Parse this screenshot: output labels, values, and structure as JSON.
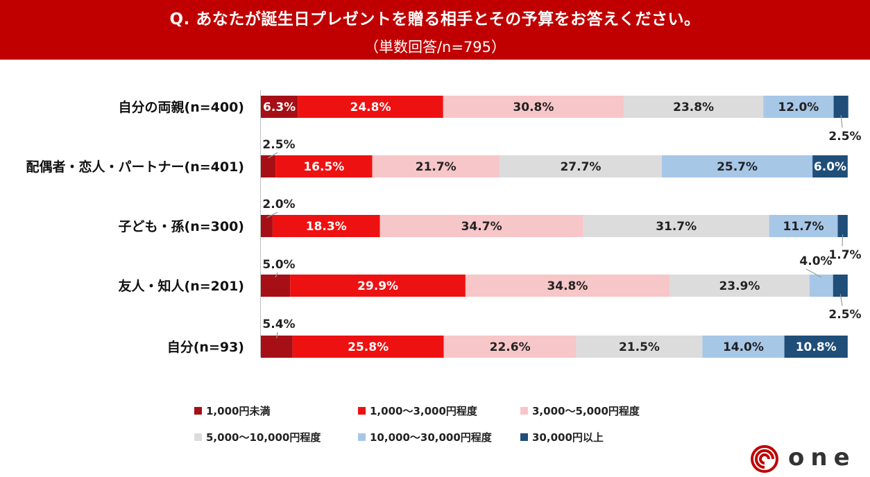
{
  "header": {
    "title": "Q. あなたが誕生日プレゼントを贈る相手とその予算をお答えください。",
    "subtitle": "（単数回答/n=795）"
  },
  "chart_data": {
    "type": "bar",
    "orientation": "horizontal",
    "stacked": true,
    "percent_stacked": true,
    "categories": [
      "自分の両親(n=400)",
      "配偶者・恋人・パートナー(n=401)",
      "子ども・孫(n=300)",
      "友人・知人(n=201)",
      "自分(n=93)"
    ],
    "series": [
      {
        "name": "1,000円未満",
        "color": "#a50f15",
        "values": [
          6.3,
          2.5,
          2.0,
          5.0,
          5.4
        ]
      },
      {
        "name": "1,000～3,000円程度",
        "color": "#ee1111",
        "values": [
          24.8,
          16.5,
          18.3,
          29.9,
          25.8
        ]
      },
      {
        "name": "3,000～5,000円程度",
        "color": "#f7c6c8",
        "values": [
          30.8,
          21.7,
          34.7,
          34.8,
          22.6
        ]
      },
      {
        "name": "5,000～10,000円程度",
        "color": "#dcdcdc",
        "values": [
          23.8,
          27.7,
          31.7,
          23.9,
          21.5
        ]
      },
      {
        "name": "10,000～30,000円程度",
        "color": "#a7c7e7",
        "values": [
          12.0,
          25.7,
          11.7,
          4.0,
          14.0
        ]
      },
      {
        "name": "30,000円以上",
        "color": "#1f4e79",
        "values": [
          2.5,
          6.0,
          1.7,
          2.5,
          10.8
        ]
      }
    ],
    "value_labels": [
      [
        "6.3%",
        "24.8%",
        "30.8%",
        "23.8%",
        "12.0%",
        "2.5%"
      ],
      [
        "2.5%",
        "16.5%",
        "21.7%",
        "27.7%",
        "25.7%",
        "6.0%"
      ],
      [
        "2.0%",
        "18.3%",
        "34.7%",
        "31.7%",
        "11.7%",
        "1.7%"
      ],
      [
        "5.0%",
        "29.9%",
        "34.8%",
        "23.9%",
        "4.0%",
        "2.5%"
      ],
      [
        "5.4%",
        "25.8%",
        "22.6%",
        "21.5%",
        "14.0%",
        "10.8%"
      ]
    ],
    "xlim": [
      0,
      100
    ],
    "legend_position": "bottom"
  },
  "logo": {
    "text": "one"
  }
}
